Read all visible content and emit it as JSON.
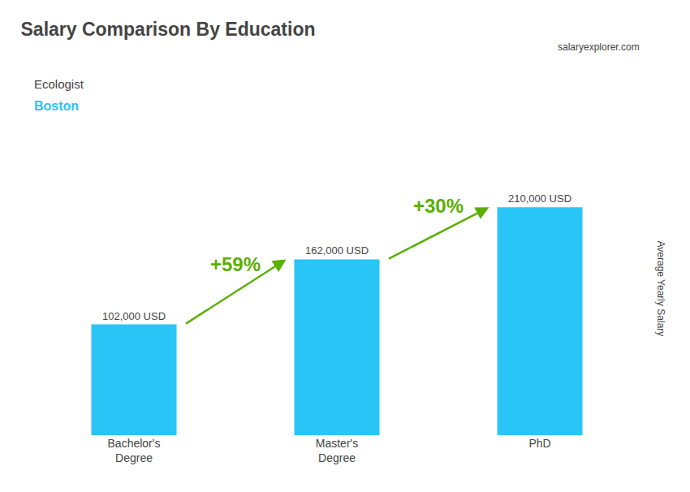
{
  "chart_data": {
    "type": "bar",
    "title": "Salary Comparison By Education",
    "subtitle": [
      "Ecologist",
      "Boston"
    ],
    "ylabel": "Average Yearly Salary",
    "categories": [
      "Bachelor's\nDegree",
      "Master's\nDegree",
      "PhD"
    ],
    "values": [
      102000,
      162000,
      210000
    ],
    "value_labels": [
      "102,000 USD",
      "162,000 USD",
      "210,000 USD"
    ],
    "data_labels": true,
    "color": "#29C5F6",
    "ylim": [
      0,
      270000
    ],
    "tick_labels": "x",
    "grid": false,
    "annotations": [
      "+59%",
      "+30%",
      "salaryexplorer.com"
    ]
  }
}
